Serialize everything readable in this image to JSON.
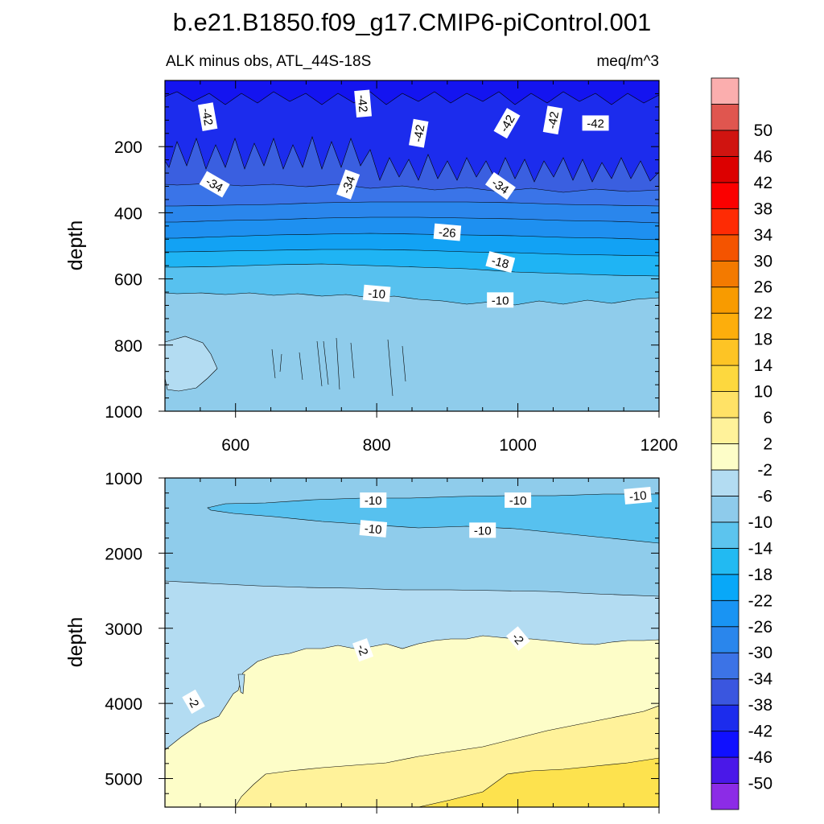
{
  "figure": {
    "title": "b.e21.B1850.f09_g17.CMIP6-piControl.001",
    "left_string": "ALK minus obs, ATL_44S-18S",
    "right_string": "meq/m^3"
  },
  "chart_data": {
    "type": "heatmap",
    "panels": [
      {
        "name": "upper",
        "ylabel": "depth",
        "xlim": [
          500,
          1200
        ],
        "ylim": [
          1000,
          0
        ],
        "xticks": [
          600,
          800,
          1000,
          1200
        ],
        "yticks": [
          200,
          400,
          600,
          800,
          1000
        ],
        "bands": [
          {
            "top": 0,
            "bottom": 260,
            "value": -46,
            "color": "#1414f0"
          },
          {
            "top": 260,
            "bottom": 330,
            "value": -38,
            "color": "#3a5fe0"
          },
          {
            "top": 330,
            "bottom": 380,
            "value": -34,
            "color": "#3a74e8"
          },
          {
            "top": 380,
            "bottom": 430,
            "value": -30,
            "color": "#2a86ec"
          },
          {
            "top": 430,
            "bottom": 470,
            "value": -26,
            "color": "#1e90f0"
          },
          {
            "top": 470,
            "bottom": 510,
            "value": -22,
            "color": "#12a2f4"
          },
          {
            "top": 510,
            "bottom": 560,
            "value": -18,
            "color": "#1fb4f4"
          },
          {
            "top": 560,
            "bottom": 640,
            "value": -14,
            "color": "#57c1ef"
          },
          {
            "top": 640,
            "bottom": 1000,
            "value": -10,
            "color": "#8fcceb"
          }
        ],
        "contour_labels": [
          {
            "text": "-42",
            "x": 560,
            "y": 110,
            "angle": 80
          },
          {
            "text": "-42",
            "x": 780,
            "y": 70,
            "angle": 85
          },
          {
            "text": "-42",
            "x": 860,
            "y": 160,
            "angle": -80
          },
          {
            "text": "-42",
            "x": 985,
            "y": 130,
            "angle": -60
          },
          {
            "text": "-42",
            "x": 1050,
            "y": 120,
            "angle": -80
          },
          {
            "text": "-42",
            "x": 1110,
            "y": 130,
            "angle": 0
          },
          {
            "text": "-34",
            "x": 570,
            "y": 315,
            "angle": 30
          },
          {
            "text": "-34",
            "x": 760,
            "y": 315,
            "angle": -70
          },
          {
            "text": "-34",
            "x": 975,
            "y": 320,
            "angle": 35
          },
          {
            "text": "-26",
            "x": 900,
            "y": 460,
            "angle": 5
          },
          {
            "text": "-18",
            "x": 975,
            "y": 550,
            "angle": 15
          },
          {
            "text": "-10",
            "x": 800,
            "y": 645,
            "angle": 5
          },
          {
            "text": "-10",
            "x": 975,
            "y": 665,
            "angle": 0
          }
        ]
      },
      {
        "name": "lower",
        "ylabel": "depth",
        "xlim": [
          500,
          1200
        ],
        "ylim": [
          5380,
          1000
        ],
        "xticks": [
          600,
          800,
          1000,
          1200
        ],
        "yticks": [
          1000,
          2000,
          3000,
          4000,
          5000
        ],
        "contour_labels": [
          {
            "text": "-10",
            "x": 795,
            "y": 1300,
            "angle": 0
          },
          {
            "text": "-10",
            "x": 1000,
            "y": 1300,
            "angle": 0
          },
          {
            "text": "-10",
            "x": 1170,
            "y": 1240,
            "angle": -5
          },
          {
            "text": "-10",
            "x": 795,
            "y": 1680,
            "angle": 5
          },
          {
            "text": "-10",
            "x": 950,
            "y": 1700,
            "angle": 0
          },
          {
            "text": "-2",
            "x": 780,
            "y": 3290,
            "angle": 70
          },
          {
            "text": "-2",
            "x": 1000,
            "y": 3140,
            "angle": 50
          },
          {
            "text": "-2",
            "x": 540,
            "y": 3980,
            "angle": 60
          }
        ]
      }
    ],
    "colorbar": {
      "colors": [
        "#8c2ce6",
        "#4a18e8",
        "#1010ff",
        "#1c2ced",
        "#3a56df",
        "#3c73e6",
        "#2a86ec",
        "#1994f3",
        "#08a8f8",
        "#22baf2",
        "#5cc4ee",
        "#8ecbeb",
        "#b3dcf2",
        "#fdfdc8",
        "#fff29a",
        "#ffe266",
        "#fdd83e",
        "#fdc425",
        "#fdae0c",
        "#f89b00",
        "#f37a00",
        "#f45400",
        "#fe2b04",
        "#fb0000",
        "#dc0000",
        "#d01410",
        "#e0564f",
        "#fbaeae"
      ],
      "labels": [
        "-50",
        "-46",
        "-42",
        "-38",
        "-34",
        "-30",
        "-26",
        "-22",
        "-18",
        "-14",
        "-10",
        "-6",
        "-2",
        "2",
        "6",
        "10",
        "14",
        "18",
        "22",
        "26",
        "30",
        "34",
        "38",
        "42",
        "46",
        "50"
      ]
    }
  }
}
